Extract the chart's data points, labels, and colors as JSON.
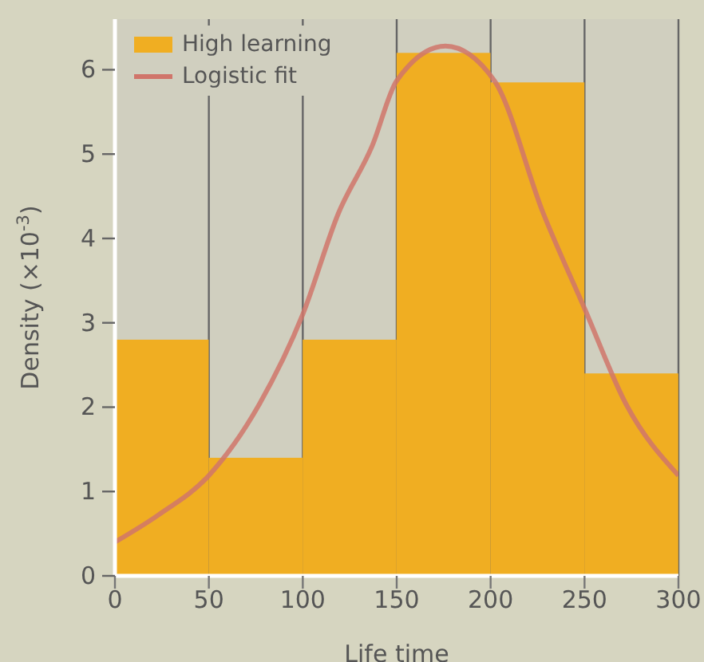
{
  "chart_data": {
    "type": "histogram",
    "xlabel": "Life time",
    "ylabel": "Density (×10$^{-3}$)",
    "bins": [
      0,
      50,
      100,
      150,
      200,
      250,
      300
    ],
    "series": [
      {
        "name": "High learning",
        "color": "#f0ae22",
        "values": [
          2.8,
          1.4,
          2.8,
          6.2,
          5.85,
          2.4
        ]
      },
      {
        "name": "Logistic fit",
        "type": "line",
        "color": "#d0756a",
        "x": [
          0,
          23,
          50,
          77,
          100,
          119,
          137,
          150,
          176,
          202,
          228,
          250,
          272,
          300
        ],
        "values": [
          0.4,
          0.72,
          1.19,
          2.04,
          3.1,
          4.3,
          5.1,
          5.87,
          6.28,
          5.87,
          4.3,
          3.17,
          2.04,
          1.19
        ]
      }
    ],
    "xlim": [
      0,
      300
    ],
    "xticks": [
      0,
      50,
      100,
      150,
      200,
      250,
      300
    ],
    "ylim": [
      0,
      6.6
    ],
    "yticks": [
      0,
      1,
      2,
      3,
      4,
      5,
      6
    ],
    "grid": "x",
    "legend": "top left"
  }
}
